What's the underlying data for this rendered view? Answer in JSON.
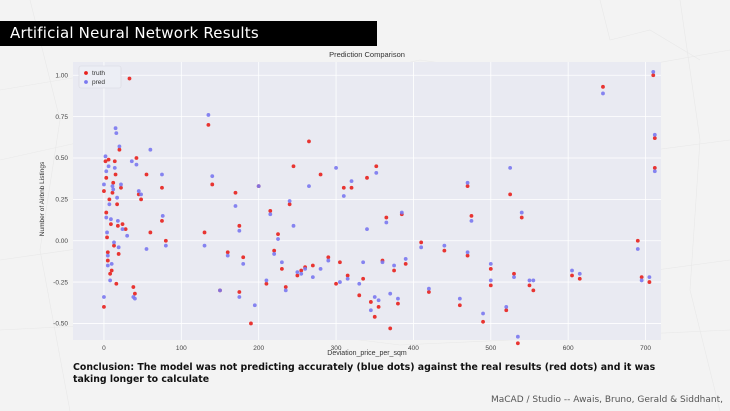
{
  "slide": {
    "heading": "Artificial Neural Network Results",
    "conclusion": "Conclusion: The model was not predicting accurately (blue dots) against the real results (red dots) and it was taking longer to calculate",
    "credit": "MaCAD / Studio -- Awais, Bruno, Gerald & Siddhant,"
  },
  "chart_data": {
    "type": "scatter",
    "title": "Prediction Comparison",
    "xlabel": "Deviation_price_per_sqm",
    "ylabel": "Number of Airbnb Listings",
    "xlim": [
      -40,
      720
    ],
    "ylim": [
      -0.6,
      1.08
    ],
    "xticks": [
      "0",
      "100",
      "200",
      "300",
      "400",
      "500",
      "600",
      "700"
    ],
    "yticks": [
      "-0.50",
      "-0.25",
      "0.00",
      "0.25",
      "0.50",
      "0.75",
      "1.00"
    ],
    "grid": true,
    "legend": "top-left",
    "colors": {
      "truth": "#e8201c",
      "pred": "#7a78f0",
      "plot_bg": "#e9eaf2",
      "grid": "#ffffff"
    },
    "series": [
      {
        "name": "truth",
        "points": [
          [
            0,
            -0.4
          ],
          [
            0,
            0.3
          ],
          [
            2,
            0.48
          ],
          [
            3,
            0.38
          ],
          [
            3,
            0.17
          ],
          [
            4,
            0.02
          ],
          [
            5,
            -0.07
          ],
          [
            5,
            -0.12
          ],
          [
            6,
            0.49
          ],
          [
            7,
            0.25
          ],
          [
            8,
            -0.2
          ],
          [
            9,
            0.1
          ],
          [
            10,
            -0.18
          ],
          [
            11,
            0.29
          ],
          [
            12,
            0.35
          ],
          [
            13,
            -0.03
          ],
          [
            14,
            0.48
          ],
          [
            15,
            0.4
          ],
          [
            16,
            -0.26
          ],
          [
            17,
            0.22
          ],
          [
            18,
            0.09
          ],
          [
            19,
            -0.08
          ],
          [
            20,
            0.55
          ],
          [
            22,
            0.32
          ],
          [
            24,
            0.1
          ],
          [
            28,
            0.07
          ],
          [
            33,
            0.98
          ],
          [
            38,
            -0.28
          ],
          [
            40,
            -0.32
          ],
          [
            42,
            0.5
          ],
          [
            45,
            0.28
          ],
          [
            48,
            0.25
          ],
          [
            55,
            0.4
          ],
          [
            60,
            0.05
          ],
          [
            75,
            0.32
          ],
          [
            75,
            0.12
          ],
          [
            80,
            0.0
          ],
          [
            130,
            0.05
          ],
          [
            135,
            0.7
          ],
          [
            140,
            0.34
          ],
          [
            150,
            -0.3
          ],
          [
            160,
            -0.07
          ],
          [
            170,
            0.29
          ],
          [
            175,
            0.09
          ],
          [
            175,
            -0.31
          ],
          [
            180,
            -0.1
          ],
          [
            190,
            -0.5
          ],
          [
            200,
            0.33
          ],
          [
            210,
            -0.26
          ],
          [
            215,
            0.18
          ],
          [
            220,
            -0.06
          ],
          [
            225,
            0.04
          ],
          [
            230,
            -0.17
          ],
          [
            235,
            -0.28
          ],
          [
            240,
            0.22
          ],
          [
            245,
            0.45
          ],
          [
            250,
            -0.21
          ],
          [
            255,
            -0.18
          ],
          [
            260,
            -0.16
          ],
          [
            265,
            0.6
          ],
          [
            270,
            -0.15
          ],
          [
            280,
            0.4
          ],
          [
            290,
            -0.1
          ],
          [
            300,
            -0.26
          ],
          [
            305,
            -0.13
          ],
          [
            310,
            0.32
          ],
          [
            315,
            -0.21
          ],
          [
            320,
            0.32
          ],
          [
            330,
            -0.33
          ],
          [
            335,
            -0.23
          ],
          [
            340,
            0.38
          ],
          [
            345,
            -0.37
          ],
          [
            350,
            -0.46
          ],
          [
            352,
            0.45
          ],
          [
            355,
            -0.4
          ],
          [
            360,
            -0.12
          ],
          [
            365,
            0.14
          ],
          [
            370,
            -0.53
          ],
          [
            375,
            -0.18
          ],
          [
            380,
            -0.38
          ],
          [
            385,
            0.16
          ],
          [
            390,
            -0.14
          ],
          [
            410,
            -0.01
          ],
          [
            420,
            -0.31
          ],
          [
            440,
            -0.06
          ],
          [
            460,
            -0.39
          ],
          [
            470,
            0.33
          ],
          [
            470,
            -0.09
          ],
          [
            475,
            0.15
          ],
          [
            490,
            -0.49
          ],
          [
            500,
            -0.27
          ],
          [
            500,
            -0.17
          ],
          [
            520,
            -0.42
          ],
          [
            525,
            0.28
          ],
          [
            530,
            -0.2
          ],
          [
            535,
            -0.62
          ],
          [
            540,
            0.14
          ],
          [
            550,
            -0.27
          ],
          [
            555,
            -0.3
          ],
          [
            605,
            -0.21
          ],
          [
            615,
            -0.23
          ],
          [
            645,
            0.93
          ],
          [
            690,
            0.0
          ],
          [
            695,
            -0.22
          ],
          [
            705,
            -0.25
          ],
          [
            710,
            1.0
          ],
          [
            712,
            0.62
          ],
          [
            712,
            0.44
          ]
        ]
      },
      {
        "name": "pred",
        "points": [
          [
            0,
            -0.34
          ],
          [
            0,
            0.34
          ],
          [
            2,
            0.51
          ],
          [
            3,
            0.42
          ],
          [
            3,
            0.14
          ],
          [
            4,
            0.05
          ],
          [
            5,
            -0.09
          ],
          [
            5,
            -0.15
          ],
          [
            6,
            0.45
          ],
          [
            7,
            0.22
          ],
          [
            8,
            -0.24
          ],
          [
            9,
            0.13
          ],
          [
            10,
            -0.14
          ],
          [
            11,
            0.33
          ],
          [
            12,
            0.31
          ],
          [
            13,
            -0.01
          ],
          [
            14,
            0.44
          ],
          [
            15,
            0.68
          ],
          [
            16,
            0.65
          ],
          [
            17,
            0.26
          ],
          [
            18,
            0.12
          ],
          [
            19,
            -0.04
          ],
          [
            20,
            0.57
          ],
          [
            22,
            0.34
          ],
          [
            24,
            0.07
          ],
          [
            30,
            0.03
          ],
          [
            36,
            0.48
          ],
          [
            38,
            -0.34
          ],
          [
            40,
            -0.35
          ],
          [
            42,
            0.46
          ],
          [
            45,
            0.3
          ],
          [
            48,
            0.28
          ],
          [
            55,
            -0.05
          ],
          [
            60,
            0.55
          ],
          [
            75,
            0.4
          ],
          [
            76,
            0.15
          ],
          [
            80,
            -0.03
          ],
          [
            130,
            -0.03
          ],
          [
            135,
            0.76
          ],
          [
            140,
            0.39
          ],
          [
            150,
            -0.3
          ],
          [
            160,
            -0.09
          ],
          [
            170,
            0.21
          ],
          [
            175,
            0.06
          ],
          [
            175,
            -0.34
          ],
          [
            180,
            -0.14
          ],
          [
            195,
            -0.39
          ],
          [
            200,
            0.33
          ],
          [
            210,
            -0.24
          ],
          [
            215,
            0.16
          ],
          [
            220,
            -0.08
          ],
          [
            225,
            0.01
          ],
          [
            230,
            -0.13
          ],
          [
            235,
            -0.3
          ],
          [
            240,
            0.24
          ],
          [
            245,
            0.09
          ],
          [
            250,
            -0.19
          ],
          [
            255,
            -0.2
          ],
          [
            260,
            -0.17
          ],
          [
            265,
            0.33
          ],
          [
            270,
            -0.22
          ],
          [
            280,
            -0.17
          ],
          [
            290,
            -0.12
          ],
          [
            300,
            0.44
          ],
          [
            305,
            -0.25
          ],
          [
            310,
            0.27
          ],
          [
            315,
            -0.23
          ],
          [
            320,
            0.36
          ],
          [
            330,
            -0.26
          ],
          [
            335,
            -0.13
          ],
          [
            340,
            0.07
          ],
          [
            345,
            -0.42
          ],
          [
            350,
            -0.34
          ],
          [
            352,
            0.41
          ],
          [
            355,
            -0.36
          ],
          [
            360,
            -0.13
          ],
          [
            365,
            0.11
          ],
          [
            370,
            -0.32
          ],
          [
            375,
            -0.15
          ],
          [
            380,
            -0.35
          ],
          [
            385,
            0.17
          ],
          [
            390,
            -0.11
          ],
          [
            410,
            -0.04
          ],
          [
            420,
            -0.29
          ],
          [
            440,
            -0.03
          ],
          [
            460,
            -0.35
          ],
          [
            470,
            0.35
          ],
          [
            470,
            -0.07
          ],
          [
            475,
            0.12
          ],
          [
            490,
            -0.44
          ],
          [
            500,
            -0.24
          ],
          [
            500,
            -0.14
          ],
          [
            520,
            -0.4
          ],
          [
            525,
            0.44
          ],
          [
            530,
            -0.22
          ],
          [
            535,
            -0.58
          ],
          [
            540,
            0.17
          ],
          [
            550,
            -0.24
          ],
          [
            555,
            -0.24
          ],
          [
            605,
            -0.18
          ],
          [
            615,
            -0.2
          ],
          [
            645,
            0.89
          ],
          [
            690,
            -0.05
          ],
          [
            695,
            -0.24
          ],
          [
            705,
            -0.22
          ],
          [
            710,
            1.02
          ],
          [
            712,
            0.64
          ],
          [
            712,
            0.42
          ]
        ]
      }
    ]
  }
}
